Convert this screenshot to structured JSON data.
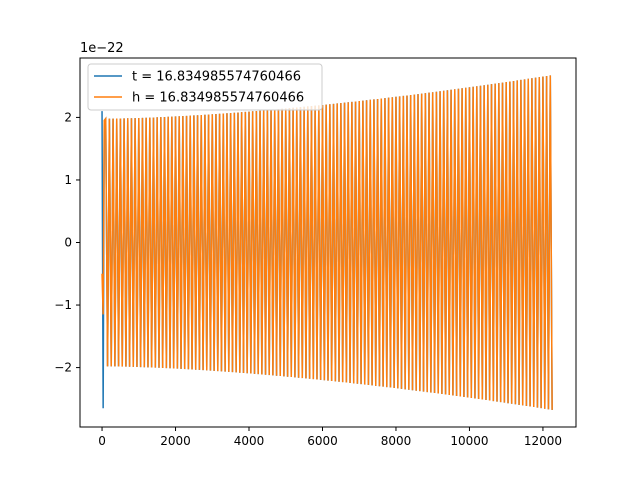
{
  "chart_data": {
    "type": "line",
    "title": "",
    "xlabel": "",
    "ylabel": "",
    "y_offset_text": "1e−22",
    "xlim": [
      -600,
      12900
    ],
    "ylim": [
      -2.95,
      2.95
    ],
    "x_ticks": [
      0,
      2000,
      4000,
      6000,
      8000,
      10000,
      12000
    ],
    "x_tick_labels": [
      "0",
      "2000",
      "4000",
      "6000",
      "8000",
      "10000",
      "12000"
    ],
    "y_ticks": [
      -2,
      -1,
      0,
      1,
      2
    ],
    "y_tick_labels": [
      "−2",
      "−1",
      "0",
      "1",
      "2"
    ],
    "grid": false,
    "legend_position": "upper-left",
    "series": [
      {
        "name": "t = 16.834985574760466",
        "color": "#1f77b4",
        "x_range": [
          0,
          12290
        ],
        "initial_spike": {
          "x": [
            0,
            30,
            60
          ],
          "y": [
            2.1,
            -2.65,
            1.95
          ]
        },
        "envelope": {
          "x": [
            100,
            12290
          ],
          "amplitude": [
            1.98,
            2.68
          ]
        }
      },
      {
        "name": "h = 16.834985574760466",
        "color": "#ff7f0e",
        "x_range": [
          0,
          12290
        ],
        "initial_spike": {
          "x": [
            0,
            30,
            60
          ],
          "y": [
            -0.5,
            -1.15,
            1.95
          ]
        },
        "envelope": {
          "x": [
            100,
            12290
          ],
          "amplitude": [
            1.98,
            2.68
          ]
        }
      }
    ]
  }
}
